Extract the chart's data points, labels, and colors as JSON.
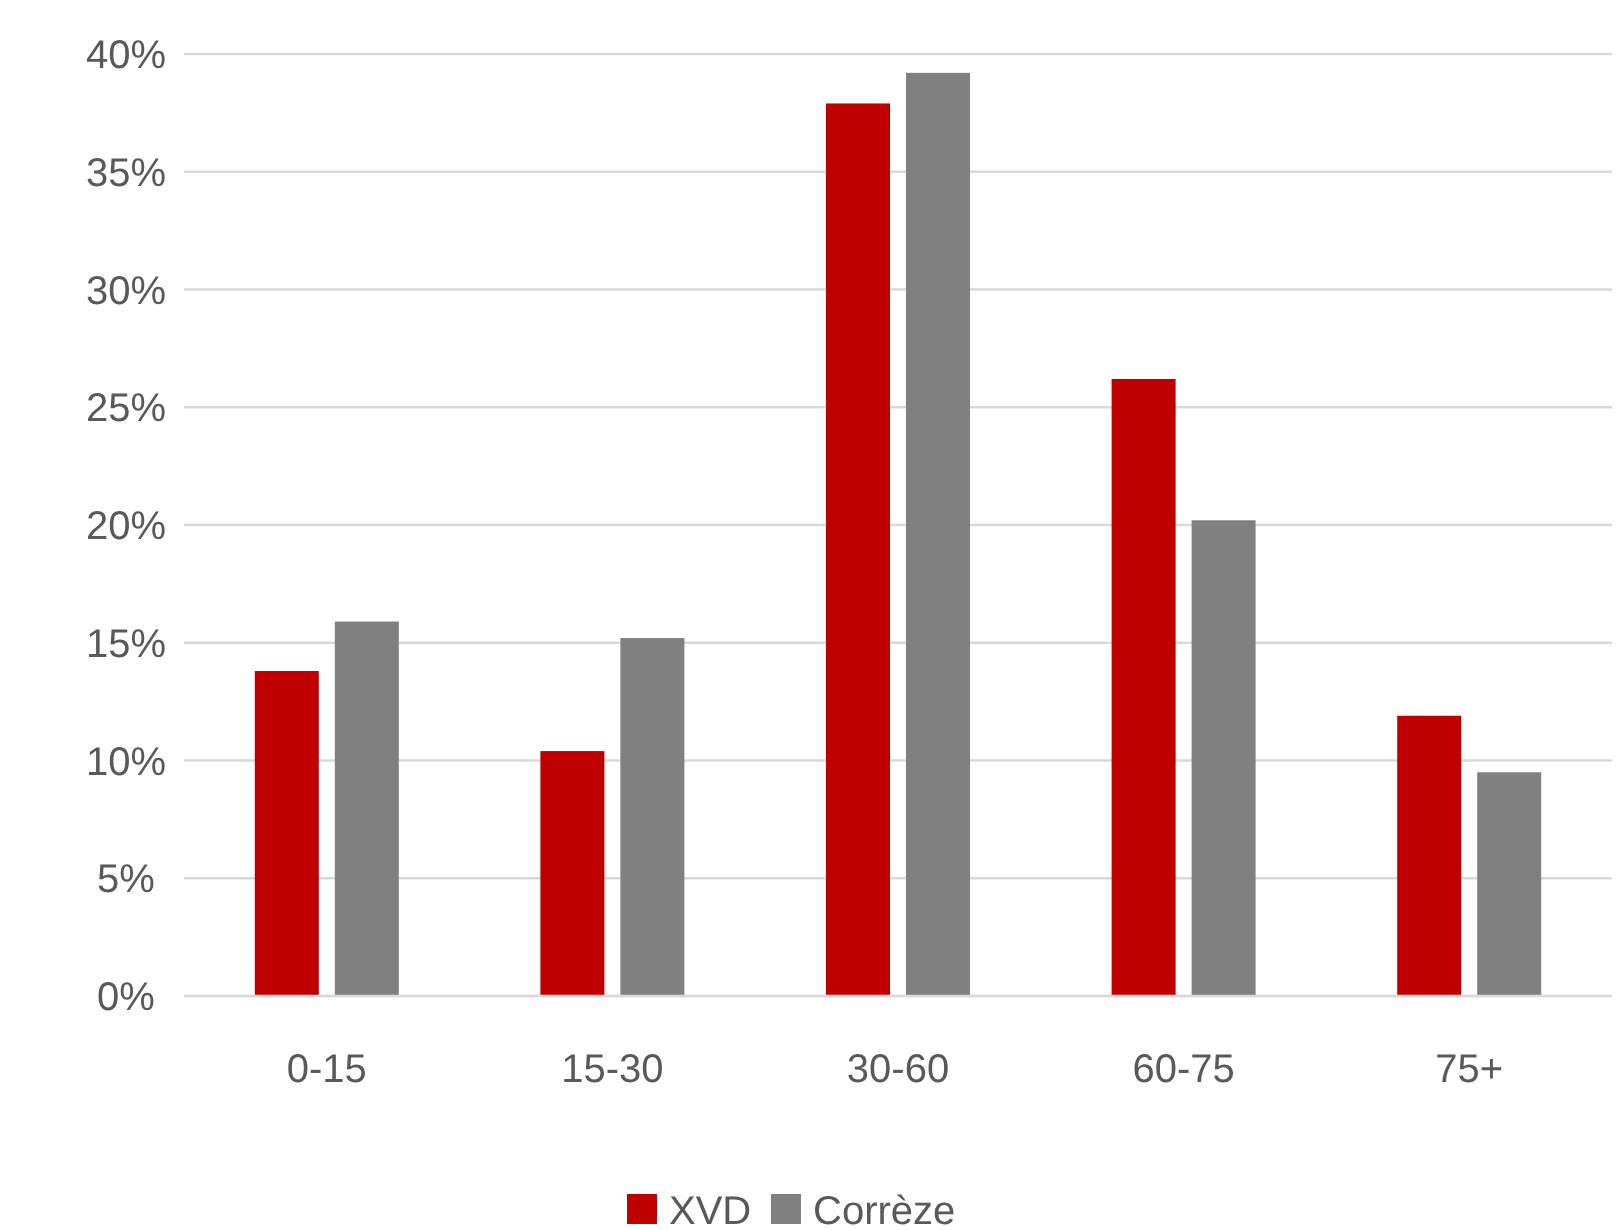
{
  "chart_data": {
    "type": "bar",
    "categories": [
      "0-15",
      "15-30",
      "30-60",
      "60-75",
      "75+"
    ],
    "series": [
      {
        "name": "XVD",
        "color": "#c00000",
        "values": [
          13.8,
          10.4,
          37.9,
          26.2,
          11.9
        ]
      },
      {
        "name": "Corrèze",
        "color": "#808080",
        "values": [
          15.9,
          15.2,
          39.2,
          20.2,
          9.5
        ]
      }
    ],
    "ylim": [
      0,
      40
    ],
    "yticks": [
      {
        "value": 0,
        "label": "0%"
      },
      {
        "value": 5,
        "label": "5%"
      },
      {
        "value": 10,
        "label": "10%"
      },
      {
        "value": 15,
        "label": "15%"
      },
      {
        "value": 20,
        "label": "20%"
      },
      {
        "value": 25,
        "label": "25%"
      },
      {
        "value": 30,
        "label": "30%"
      },
      {
        "value": 35,
        "label": "35%"
      },
      {
        "value": 40,
        "label": "40%"
      }
    ],
    "grid": "y",
    "legend": "bottom"
  }
}
